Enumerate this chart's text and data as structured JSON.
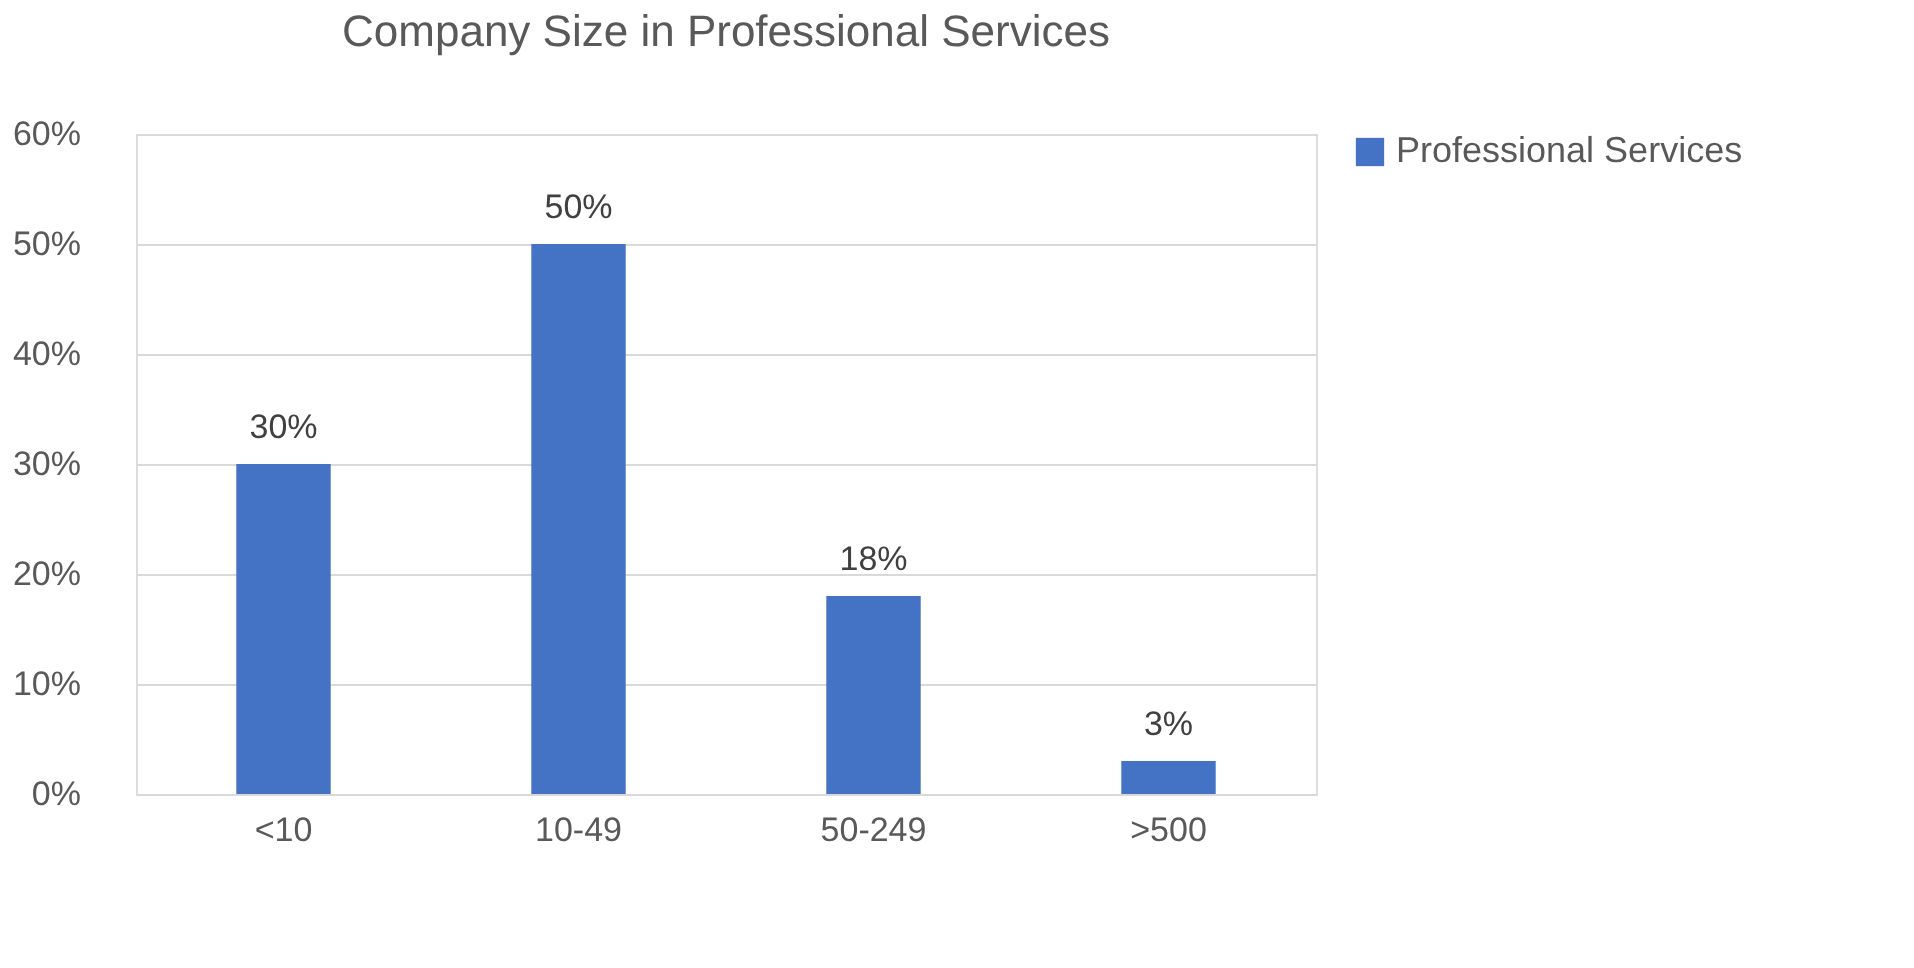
{
  "chart_data": {
    "type": "bar",
    "title": "Company Size in Professional Services",
    "categories": [
      "<10",
      "10-49",
      "50-249",
      ">500"
    ],
    "series": [
      {
        "name": "Professional Services",
        "color": "#4472c4",
        "values": [
          30,
          50,
          18,
          3
        ],
        "value_labels": [
          "30%",
          "50%",
          "18%",
          "3%"
        ]
      }
    ],
    "ylim": [
      0,
      60
    ],
    "yticks": [
      {
        "value": 0,
        "label": "0%"
      },
      {
        "value": 10,
        "label": "10%"
      },
      {
        "value": 20,
        "label": "20%"
      },
      {
        "value": 30,
        "label": "30%"
      },
      {
        "value": 40,
        "label": "40%"
      },
      {
        "value": 50,
        "label": "50%"
      },
      {
        "value": 60,
        "label": "60%"
      }
    ],
    "grid": "y",
    "legend": "right"
  }
}
